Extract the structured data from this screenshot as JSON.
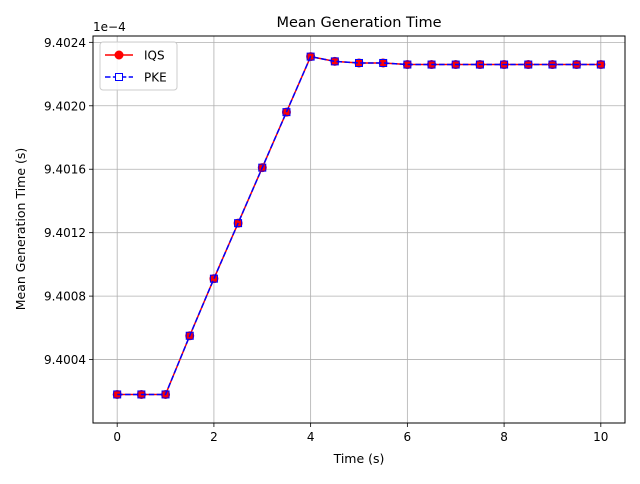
{
  "chart_data": {
    "type": "line",
    "title": "Mean Generation Time",
    "xlabel": "Time (s)",
    "ylabel": "Mean Generation Time (s)",
    "y_offset_label": "1e−4",
    "xlim": [
      -0.5,
      10.5
    ],
    "ylim": [
      9.4,
      9.40244
    ],
    "x_ticks": [
      0,
      2,
      4,
      6,
      8,
      10
    ],
    "x_tick_labels": [
      "0",
      "2",
      "4",
      "6",
      "8",
      "10"
    ],
    "y_ticks": [
      9.4004,
      9.4008,
      9.4012,
      9.4016,
      9.402,
      9.4024
    ],
    "y_tick_labels": [
      "9.4004",
      "9.4008",
      "9.4012",
      "9.4016",
      "9.4020",
      "9.4024"
    ],
    "grid": true,
    "legend_position": "upper-left",
    "x": [
      0,
      0.5,
      1,
      1.5,
      2,
      2.5,
      3,
      3.5,
      4,
      4.5,
      5,
      5.5,
      6,
      6.5,
      7,
      7.5,
      8,
      8.5,
      9,
      9.5,
      10
    ],
    "series": [
      {
        "name": "IQS",
        "color": "#ff0000",
        "line_style": "solid",
        "marker": "circle",
        "values": [
          9.40018,
          9.40018,
          9.40018,
          9.40055,
          9.40091,
          9.40126,
          9.40161,
          9.40196,
          9.40231,
          9.40228,
          9.40227,
          9.40227,
          9.40226,
          9.40226,
          9.40226,
          9.40226,
          9.40226,
          9.40226,
          9.40226,
          9.40226,
          9.40226
        ]
      },
      {
        "name": "PKE",
        "color": "#0000ff",
        "line_style": "dashed",
        "marker": "square",
        "values": [
          9.40018,
          9.40018,
          9.40018,
          9.40055,
          9.40091,
          9.40126,
          9.40161,
          9.40196,
          9.40231,
          9.40228,
          9.40227,
          9.40227,
          9.40226,
          9.40226,
          9.40226,
          9.40226,
          9.40226,
          9.40226,
          9.40226,
          9.40226,
          9.40226
        ]
      }
    ]
  }
}
